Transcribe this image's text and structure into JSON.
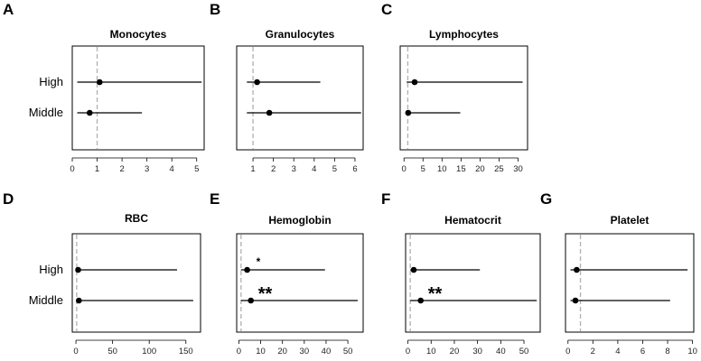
{
  "chart_data": [
    {
      "type": "forest",
      "panel_label": "A",
      "title": "Monocytes",
      "row_labels": [
        "High",
        "Middle"
      ],
      "xlim": [
        0,
        5.3
      ],
      "ticks": [
        0,
        1,
        2,
        3,
        4,
        5
      ],
      "reference_line": 1,
      "series": [
        {
          "name": "High",
          "estimate": 1.1,
          "lower": 0.2,
          "upper": 5.2,
          "annotation": ""
        },
        {
          "name": "Middle",
          "estimate": 0.7,
          "lower": 0.2,
          "upper": 2.8,
          "annotation": ""
        }
      ]
    },
    {
      "type": "forest",
      "panel_label": "B",
      "title": "Granulocytes",
      "row_labels": [],
      "xlim": [
        0.2,
        6.4
      ],
      "ticks": [
        1,
        2,
        3,
        4,
        5,
        6
      ],
      "reference_line": 1,
      "series": [
        {
          "name": "High",
          "estimate": 1.2,
          "lower": 0.7,
          "upper": 4.3,
          "annotation": ""
        },
        {
          "name": "Middle",
          "estimate": 1.8,
          "lower": 0.7,
          "upper": 6.3,
          "annotation": ""
        }
      ]
    },
    {
      "type": "forest",
      "panel_label": "C",
      "title": "Lymphocytes",
      "row_labels": [],
      "xlim": [
        -1,
        32.5
      ],
      "ticks": [
        0,
        5,
        10,
        15,
        20,
        25,
        30
      ],
      "reference_line": 1,
      "series": [
        {
          "name": "High",
          "estimate": 2.8,
          "lower": 0.7,
          "upper": 31.2,
          "annotation": ""
        },
        {
          "name": "Middle",
          "estimate": 1.1,
          "lower": 0.5,
          "upper": 14.8,
          "annotation": ""
        }
      ]
    },
    {
      "type": "forest",
      "panel_label": "D",
      "title": "RBC",
      "row_labels": [
        "High",
        "Middle"
      ],
      "xlim": [
        -5,
        170
      ],
      "ticks": [
        0,
        50,
        100,
        150
      ],
      "reference_line": 1,
      "series": [
        {
          "name": "High",
          "estimate": 3,
          "lower": 1,
          "upper": 138,
          "annotation": ""
        },
        {
          "name": "Middle",
          "estimate": 4,
          "lower": 1,
          "upper": 160,
          "annotation": ""
        }
      ]
    },
    {
      "type": "forest",
      "panel_label": "E",
      "title": "Hemoglobin",
      "row_labels": [],
      "xlim": [
        -1,
        57
      ],
      "ticks": [
        0,
        10,
        20,
        30,
        40,
        50
      ],
      "reference_line": 1,
      "series": [
        {
          "name": "High",
          "estimate": 3.8,
          "lower": 1,
          "upper": 39.5,
          "annotation": "*"
        },
        {
          "name": "Middle",
          "estimate": 5.5,
          "lower": 1,
          "upper": 54.5,
          "annotation": "**"
        }
      ]
    },
    {
      "type": "forest",
      "panel_label": "F",
      "title": "Hematocrit",
      "row_labels": [],
      "xlim": [
        -1,
        57
      ],
      "ticks": [
        0,
        10,
        20,
        30,
        40,
        50
      ],
      "reference_line": 1,
      "series": [
        {
          "name": "High",
          "estimate": 2.5,
          "lower": 1,
          "upper": 31,
          "annotation": ""
        },
        {
          "name": "Middle",
          "estimate": 5.5,
          "lower": 1,
          "upper": 55.5,
          "annotation": "**"
        }
      ]
    },
    {
      "type": "forest",
      "panel_label": "G",
      "title": "Platelet",
      "row_labels": [],
      "xlim": [
        -0.2,
        10.1
      ],
      "ticks": [
        0,
        2,
        4,
        6,
        8,
        10
      ],
      "reference_line": 1,
      "series": [
        {
          "name": "High",
          "estimate": 0.7,
          "lower": 0.2,
          "upper": 9.6,
          "annotation": ""
        },
        {
          "name": "Middle",
          "estimate": 0.6,
          "lower": 0.2,
          "upper": 8.2,
          "annotation": ""
        }
      ]
    }
  ]
}
